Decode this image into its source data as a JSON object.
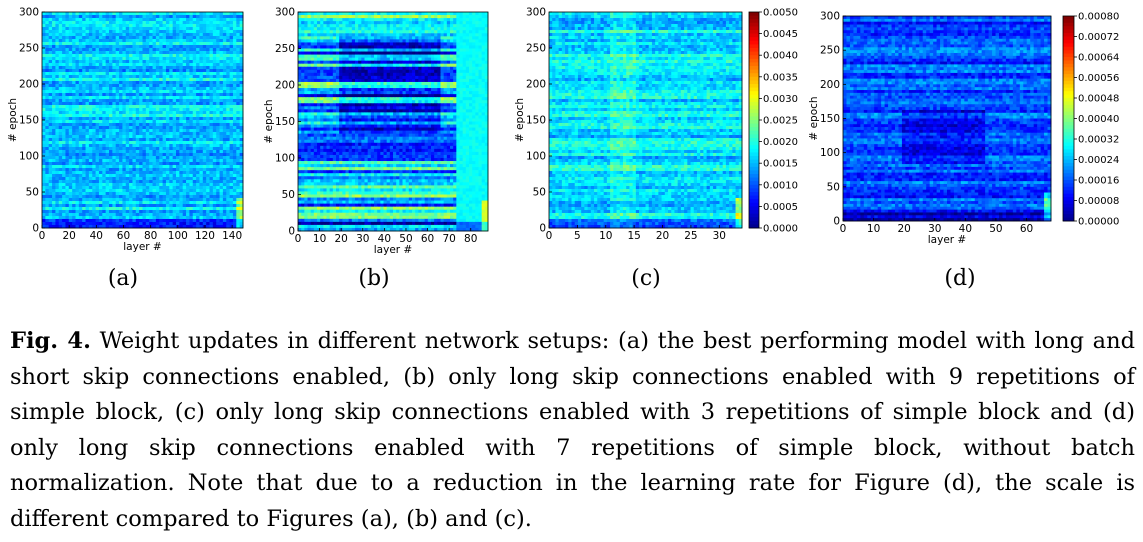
{
  "chart_data": [
    {
      "type": "heatmap",
      "panel_label": "(a)",
      "xlabel": "layer #",
      "ylabel": "# epoch",
      "x_ticks": [
        "0",
        "20",
        "40",
        "60",
        "80",
        "100",
        "120",
        "140"
      ],
      "x_tick_values": [
        0,
        20,
        40,
        60,
        80,
        100,
        120,
        140
      ],
      "xlim": [
        0,
        148
      ],
      "y_ticks": [
        "0",
        "50",
        "100",
        "150",
        "200",
        "250",
        "300"
      ],
      "y_tick_values": [
        0,
        50,
        100,
        150,
        200,
        250,
        300
      ],
      "ylim": [
        0,
        300
      ],
      "colormap": "jet",
      "dominant_level": 0.33,
      "description_level_note": "mostly cyan-blue weight updates"
    },
    {
      "type": "heatmap",
      "panel_label": "(b)",
      "xlabel": "layer #",
      "ylabel": "# epoch",
      "x_ticks": [
        "0",
        "10",
        "20",
        "30",
        "40",
        "50",
        "60",
        "70",
        "80"
      ],
      "x_tick_values": [
        0,
        10,
        20,
        30,
        40,
        50,
        60,
        70,
        80
      ],
      "xlim": [
        0,
        88
      ],
      "y_ticks": [
        "0",
        "50",
        "100",
        "150",
        "200",
        "250",
        "300"
      ],
      "y_tick_values": [
        0,
        50,
        100,
        150,
        200,
        250,
        300
      ],
      "ylim": [
        0,
        300
      ],
      "colormap": "jet",
      "dominant_level": 0.32
    },
    {
      "type": "heatmap",
      "panel_label": "(c)",
      "xlabel": "",
      "ylabel": "# epoch",
      "x_ticks": [
        "0",
        "5",
        "10",
        "15",
        "20",
        "25",
        "30"
      ],
      "x_tick_values": [
        0,
        5,
        10,
        15,
        20,
        25,
        30
      ],
      "xlim": [
        0,
        34
      ],
      "y_ticks": [
        "0",
        "50",
        "100",
        "150",
        "200",
        "250",
        "300"
      ],
      "y_tick_values": [
        0,
        50,
        100,
        150,
        200,
        250,
        300
      ],
      "ylim": [
        0,
        300
      ],
      "colormap": "jet",
      "dominant_level": 0.35,
      "colorbar_ticks": [
        "0.0050",
        "0.0045",
        "0.0040",
        "0.0035",
        "0.0030",
        "0.0025",
        "0.0020",
        "0.0015",
        "0.0010",
        "0.0005",
        "0.0000"
      ],
      "colorbar_range": [
        0.0,
        0.005
      ]
    },
    {
      "type": "heatmap",
      "panel_label": "(d)",
      "xlabel": "layer #",
      "ylabel": "# epoch",
      "x_ticks": [
        "0",
        "10",
        "20",
        "30",
        "40",
        "50",
        "60"
      ],
      "x_tick_values": [
        0,
        10,
        20,
        30,
        40,
        50,
        60
      ],
      "xlim": [
        0,
        68
      ],
      "y_ticks": [
        "0",
        "50",
        "100",
        "150",
        "200",
        "250",
        "300"
      ],
      "y_tick_values": [
        0,
        50,
        100,
        150,
        200,
        250,
        300
      ],
      "ylim": [
        0,
        300
      ],
      "colormap": "jet",
      "dominant_level": 0.2,
      "colorbar_ticks": [
        "0.00080",
        "0.00072",
        "0.00064",
        "0.00056",
        "0.00048",
        "0.00040",
        "0.00032",
        "0.00024",
        "0.00016",
        "0.00008",
        "0.00000"
      ],
      "colorbar_range": [
        0.0,
        0.0008
      ]
    }
  ],
  "caption": {
    "label": "Fig. 4.",
    "text": "Weight updates in different network setups: (a) the best performing model with long and short skip connections enabled, (b) only long skip connections enabled with 9 repetitions of simple block, (c) only long skip connections enabled with 3 repetitions of simple block and (d) only long skip connections enabled with 7 repetitions of simple block, without batch normalization. Note that due to a reduction in the learning rate for Figure (d), the scale is different compared to Figures (a), (b) and (c)."
  }
}
